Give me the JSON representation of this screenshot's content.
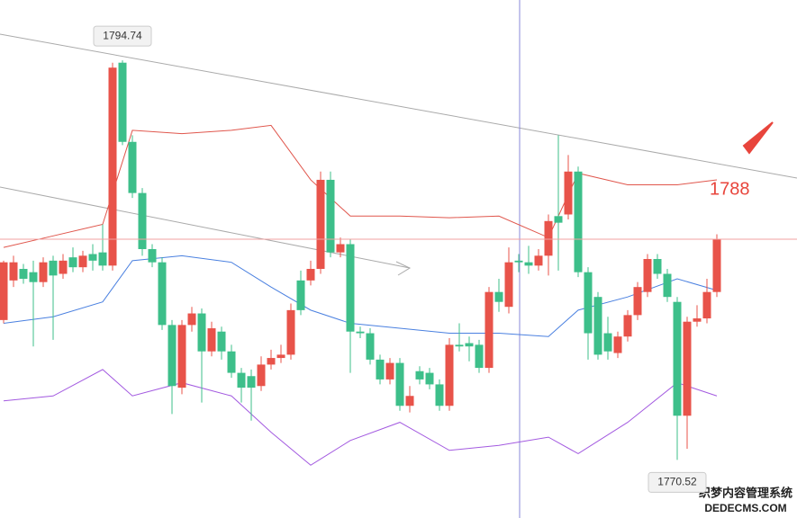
{
  "chart_data": {
    "type": "candlestick",
    "open": [
      1779.0,
      1781.4,
      1782.1,
      1781.9,
      1781.3,
      1782.6,
      1781.8,
      1782.8,
      1782.2,
      1783.0,
      1783.1,
      1782.3,
      1794.6,
      1789.8,
      1786.7,
      1783.3,
      1782.5,
      1778.7,
      1774.9,
      1778.7,
      1779.4,
      1777.1,
      1778.3,
      1777.1,
      1775.8,
      1775.6,
      1775.0,
      1776.3,
      1776.7,
      1776.9,
      1781.4,
      1781.4,
      1782.1,
      1787.5,
      1783.1,
      1783.6,
      1778.3,
      1778.2,
      1776.6,
      1775.4,
      1776.4,
      1773.8,
      1775.9,
      1775.8,
      1775.1,
      1773.8,
      1777.5,
      1777.6,
      1777.5,
      1776.1,
      1780.7,
      1779.8,
      1782.6,
      1782.5,
      1782.3,
      1782.9,
      1785.3,
      1785.4,
      1788.0,
      1781.9,
      1780.4,
      1778.2,
      1777.0,
      1778.0,
      1779.3,
      1780.7,
      1782.7,
      1781.8,
      1780.1,
      1773.2,
      1778.9,
      1779.1,
      1780.7
    ],
    "high": [
      1782.6,
      1782.9,
      1782.4,
      1782.6,
      1782.8,
      1782.9,
      1783.0,
      1783.4,
      1783.2,
      1783.6,
      1784.8,
      1794.6,
      1794.74,
      1790.2,
      1787.0,
      1783.6,
      1782.8,
      1779.0,
      1779.0,
      1779.8,
      1779.7,
      1778.9,
      1778.6,
      1777.5,
      1776.1,
      1776.0,
      1776.8,
      1777.2,
      1777.5,
      1780.0,
      1782.0,
      1782.6,
      1788.0,
      1788.0,
      1784.0,
      1783.9,
      1778.6,
      1778.5,
      1776.9,
      1776.7,
      1776.7,
      1775.0,
      1776.2,
      1776.1,
      1775.4,
      1777.9,
      1778.8,
      1778.0,
      1777.8,
      1781.0,
      1781.5,
      1783.4,
      1783.0,
      1783.5,
      1783.3,
      1785.4,
      1790.2,
      1789.0,
      1788.3,
      1782.2,
      1780.7,
      1779.2,
      1778.3,
      1779.6,
      1781.3,
      1783.0,
      1783.0,
      1782.1,
      1780.4,
      1779.2,
      1779.9,
      1781.5,
      1784.2
    ],
    "low": [
      1778.8,
      1781.0,
      1781.2,
      1777.4,
      1781.0,
      1777.8,
      1781.5,
      1781.9,
      1781.9,
      1782.0,
      1782.0,
      1782.0,
      1789.6,
      1786.4,
      1782.9,
      1782.2,
      1778.4,
      1773.3,
      1774.5,
      1778.3,
      1774.0,
      1776.8,
      1776.6,
      1775.5,
      1774.0,
      1772.9,
      1774.7,
      1776.0,
      1776.4,
      1776.6,
      1779.3,
      1781.1,
      1781.8,
      1782.8,
      1782.8,
      1775.8,
      1777.9,
      1776.3,
      1775.1,
      1775.1,
      1773.5,
      1773.4,
      1775.1,
      1774.8,
      1773.5,
      1773.5,
      1777.1,
      1776.5,
      1775.8,
      1775.8,
      1779.5,
      1779.4,
      1781.9,
      1781.8,
      1782.0,
      1781.7,
      1782.0,
      1785.1,
      1781.6,
      1776.6,
      1776.6,
      1776.6,
      1776.7,
      1777.7,
      1779.0,
      1780.4,
      1781.5,
      1780.1,
      1770.52,
      1771.2,
      1778.6,
      1778.8,
      1780.4
    ],
    "close": [
      1782.5,
      1782.5,
      1781.5,
      1781.3,
      1782.5,
      1781.7,
      1782.6,
      1782.2,
      1782.9,
      1782.6,
      1782.3,
      1794.3,
      1789.8,
      1786.7,
      1783.3,
      1782.5,
      1778.7,
      1775.0,
      1778.7,
      1779.4,
      1777.1,
      1778.5,
      1777.1,
      1775.8,
      1774.9,
      1774.9,
      1776.3,
      1776.7,
      1776.9,
      1779.6,
      1779.6,
      1782.1,
      1787.5,
      1783.1,
      1783.6,
      1778.3,
      1778.2,
      1776.6,
      1775.4,
      1776.4,
      1773.8,
      1774.4,
      1775.4,
      1775.1,
      1773.8,
      1777.5,
      1777.4,
      1777.4,
      1776.1,
      1780.7,
      1780.1,
      1782.5,
      1782.5,
      1782.3,
      1782.9,
      1785.0,
      1784.9,
      1788.0,
      1781.9,
      1778.2,
      1776.9,
      1777.1,
      1778.0,
      1779.3,
      1781.0,
      1782.7,
      1781.8,
      1780.4,
      1773.2,
      1778.9,
      1779.1,
      1780.7,
      1783.9
    ],
    "up_color": "#e8534a",
    "down_color": "#3dbf8a",
    "band_x": [
      0,
      5,
      10,
      13,
      18,
      23,
      27,
      31,
      35,
      40,
      45,
      50,
      55,
      58,
      63,
      68,
      72
    ],
    "series": [
      {
        "color": "#e0564c",
        "values": [
          1783.4,
          1784.1,
          1784.8,
          1790.5,
          1790.3,
          1790.5,
          1790.8,
          1787.5,
          1785.3,
          1785.3,
          1785.2,
          1785.3,
          1784.0,
          1787.9,
          1787.2,
          1787.2,
          1787.5
        ]
      },
      {
        "color": "#4a80e0",
        "values": [
          1778.8,
          1779.2,
          1780.1,
          1782.6,
          1782.9,
          1782.5,
          1781.0,
          1779.6,
          1778.8,
          1778.5,
          1778.2,
          1778.2,
          1778.0,
          1779.6,
          1780.4,
          1781.5,
          1780.8
        ]
      },
      {
        "color": "#a35ae0",
        "values": [
          1774.1,
          1774.4,
          1776.0,
          1774.4,
          1775.2,
          1774.4,
          1772.2,
          1770.2,
          1771.7,
          1772.8,
          1771.1,
          1771.4,
          1771.9,
          1770.9,
          1772.8,
          1775.2,
          1774.4
        ]
      }
    ],
    "ylim": [
      1767.0,
      1798.4
    ],
    "annotation": "1788",
    "watermark": {
      "cn": "织梦内容管理系统",
      "en": "DEDECMS.COM"
    }
  }
}
